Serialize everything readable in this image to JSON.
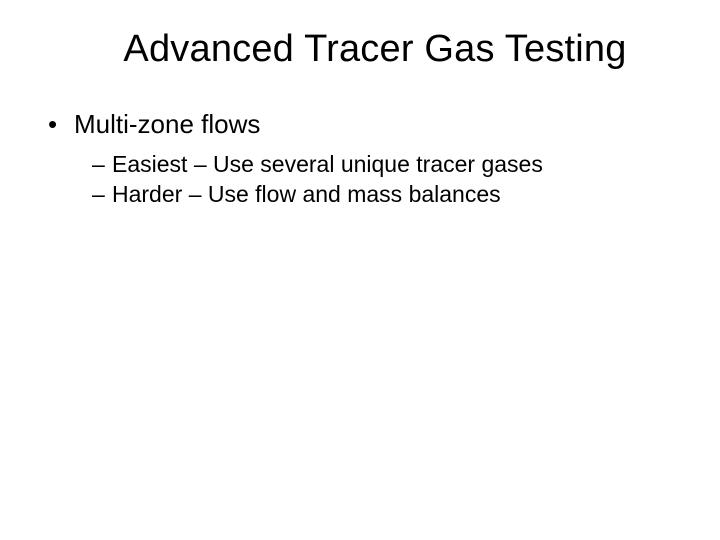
{
  "slide": {
    "title": "Advanced Tracer Gas Testing",
    "background_color": "#ffffff",
    "text_color": "#000000",
    "title_fontsize": 38,
    "body_fontsize_l1": 26,
    "body_fontsize_l2": 23,
    "bullets": [
      {
        "level": 1,
        "marker": "•",
        "text": "Multi-zone flows"
      },
      {
        "level": 2,
        "marker": "–",
        "text": "Easiest – Use several unique tracer gases"
      },
      {
        "level": 2,
        "marker": "–",
        "text": "Harder – Use flow and mass balances"
      }
    ]
  }
}
